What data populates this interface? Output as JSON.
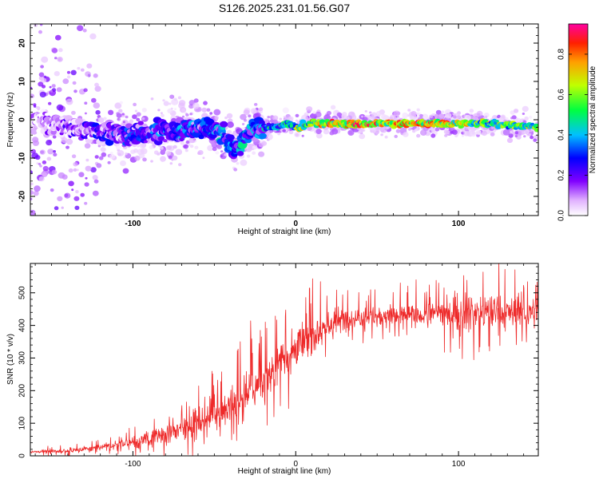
{
  "title": "S126.2025.231.01.56.G07",
  "colors": {
    "line": "#ee2a2a",
    "axis": "#000000",
    "background": "#ffffff"
  },
  "chart_data": [
    {
      "type": "heatmap",
      "xlabel": "Height of straight line (km)",
      "ylabel": "Frequency (Hz)",
      "xlim": [
        -163,
        149
      ],
      "ylim": [
        -25,
        25
      ],
      "x_ticks": [
        -100,
        0,
        100
      ],
      "x_tick_labels": [
        "-100",
        "0",
        "100"
      ],
      "y_ticks": [
        -20,
        -10,
        0,
        10,
        20
      ],
      "y_tick_labels": [
        "-20",
        "-10",
        "0",
        "10",
        "20"
      ],
      "colorbar": {
        "label": "Normalized spectral amplitude",
        "range": [
          0,
          0.95
        ],
        "ticks": [
          0,
          0.2,
          0.4,
          0.6,
          0.8
        ],
        "tick_labels": [
          "0.0",
          "0.2",
          "0.4",
          "0.6",
          "0.8"
        ]
      },
      "ridge": {
        "description_points_x": [
          -160,
          -130,
          -100,
          -80,
          -60,
          -45,
          -38,
          -25,
          -15,
          -5,
          0,
          10,
          40,
          80,
          120,
          149
        ],
        "description_points_freq": [
          0,
          -3,
          -4,
          -3,
          -2,
          -3,
          -8,
          -2,
          -2,
          -1,
          -2,
          -1,
          -1,
          -1,
          -1,
          -2
        ],
        "amplitude_trend_x": [
          -160,
          -120,
          -80,
          -40,
          -20,
          0,
          20,
          40,
          80,
          120,
          149
        ],
        "amplitude_trend": [
          0.15,
          0.3,
          0.4,
          0.45,
          0.5,
          0.7,
          0.85,
          0.95,
          0.9,
          0.7,
          0.7
        ]
      }
    },
    {
      "type": "line",
      "xlabel": "Height of straight line (km)",
      "ylabel": "SNR (10 * v/v)",
      "xlim": [
        -163,
        149
      ],
      "ylim": [
        0,
        590
      ],
      "x_ticks": [
        -100,
        0,
        100
      ],
      "x_tick_labels": [
        "-100",
        "0",
        "100"
      ],
      "y_ticks": [
        0,
        100,
        200,
        300,
        400,
        500
      ],
      "y_tick_labels": [
        "0",
        "100",
        "200",
        "300",
        "400",
        "500"
      ],
      "trend_x": [
        -163,
        -140,
        -120,
        -100,
        -80,
        -60,
        -40,
        -20,
        -10,
        0,
        10,
        20,
        30,
        50,
        70,
        90,
        110,
        130,
        149
      ],
      "trend_y": [
        12,
        15,
        25,
        40,
        65,
        100,
        150,
        230,
        290,
        330,
        370,
        400,
        420,
        430,
        430,
        440,
        440,
        440,
        440
      ],
      "noise_x": [
        -163,
        -120,
        -80,
        -40,
        0,
        40,
        80,
        100,
        130,
        149
      ],
      "noise_amplitude": [
        6,
        12,
        35,
        70,
        80,
        35,
        40,
        70,
        60,
        50
      ]
    }
  ]
}
